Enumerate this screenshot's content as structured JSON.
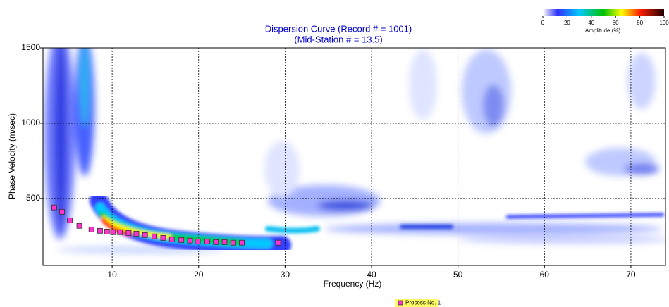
{
  "chart_data": {
    "type": "scatter",
    "title": "Dispersion Curve (Record # = 1001)",
    "subtitle": "(Mid-Station # = 13.5)",
    "xlabel": "Frequency (Hz)",
    "ylabel": "Phase Velocity (m/sec)",
    "xlim": [
      2,
      74
    ],
    "xticks": [
      10,
      20,
      30,
      40,
      50,
      60,
      70
    ],
    "ylim": [
      55,
      1500
    ],
    "yticks": [
      500,
      1000,
      1500
    ],
    "grid": true,
    "series": [
      {
        "name": "Process No. 1",
        "color": "#ff33cc",
        "x": [
          3.3,
          4.2,
          5.1,
          6.2,
          7.6,
          8.6,
          9.4,
          10.1,
          10.9,
          11.9,
          12.8,
          13.8,
          14.9,
          15.9,
          16.9,
          18.0,
          19.0,
          19.9,
          21.0,
          22.0,
          23.0,
          24.0,
          25.0,
          29.2
        ],
        "values": [
          440,
          411,
          355,
          318,
          294,
          285,
          280,
          276,
          276,
          271,
          266,
          257,
          248,
          238,
          229,
          224,
          220,
          215,
          215,
          210,
          210,
          206,
          206,
          206
        ]
      }
    ],
    "colorbar": {
      "label": "Amplitude (%)",
      "lim": [
        0,
        100
      ],
      "ticks": [
        0,
        20,
        40,
        60,
        80,
        100
      ]
    }
  }
}
